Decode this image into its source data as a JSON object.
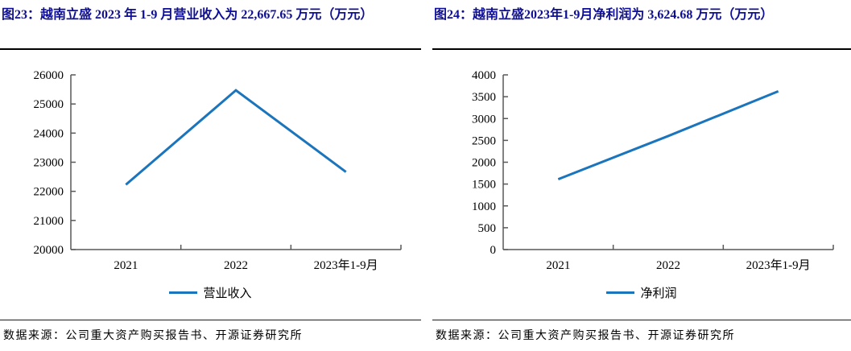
{
  "colors": {
    "title": "#0F0F96",
    "line": "#1B75BC",
    "axis": "#595959",
    "tick_label": "#000000",
    "rule": "#000000"
  },
  "chart_data": [
    {
      "type": "line",
      "title": "图23：越南立盛 2023 年 1-9 月营业收入为 22,667.65 万元（万元）",
      "categories": [
        "2021",
        "2022",
        "2023年1-9月"
      ],
      "series": [
        {
          "name": "营业收入",
          "values": [
            22230,
            25470,
            22667.65
          ]
        }
      ],
      "xlabel": "",
      "ylabel": "",
      "ylim": [
        20000,
        26000
      ],
      "ytick_step": 1000,
      "ytick_labels": [
        "20000",
        "21000",
        "22000",
        "23000",
        "24000",
        "25000",
        "26000"
      ],
      "grid": false,
      "legend_position": "bottom",
      "source": "数据来源：公司重大资产购买报告书、开源证券研究所"
    },
    {
      "type": "line",
      "title": "图24：越南立盛2023年1-9月净利润为 3,624.68 万元（万元）",
      "categories": [
        "2021",
        "2022",
        "2023年1-9月"
      ],
      "series": [
        {
          "name": "净利润",
          "values": [
            1610,
            2600,
            3624.68
          ]
        }
      ],
      "xlabel": "",
      "ylabel": "",
      "ylim": [
        0,
        4000
      ],
      "ytick_step": 500,
      "ytick_labels": [
        "0",
        "500",
        "1000",
        "1500",
        "2000",
        "2500",
        "3000",
        "3500",
        "4000"
      ],
      "grid": false,
      "legend_position": "bottom",
      "source": "数据来源：公司重大资产购买报告书、开源证券研究所"
    }
  ]
}
